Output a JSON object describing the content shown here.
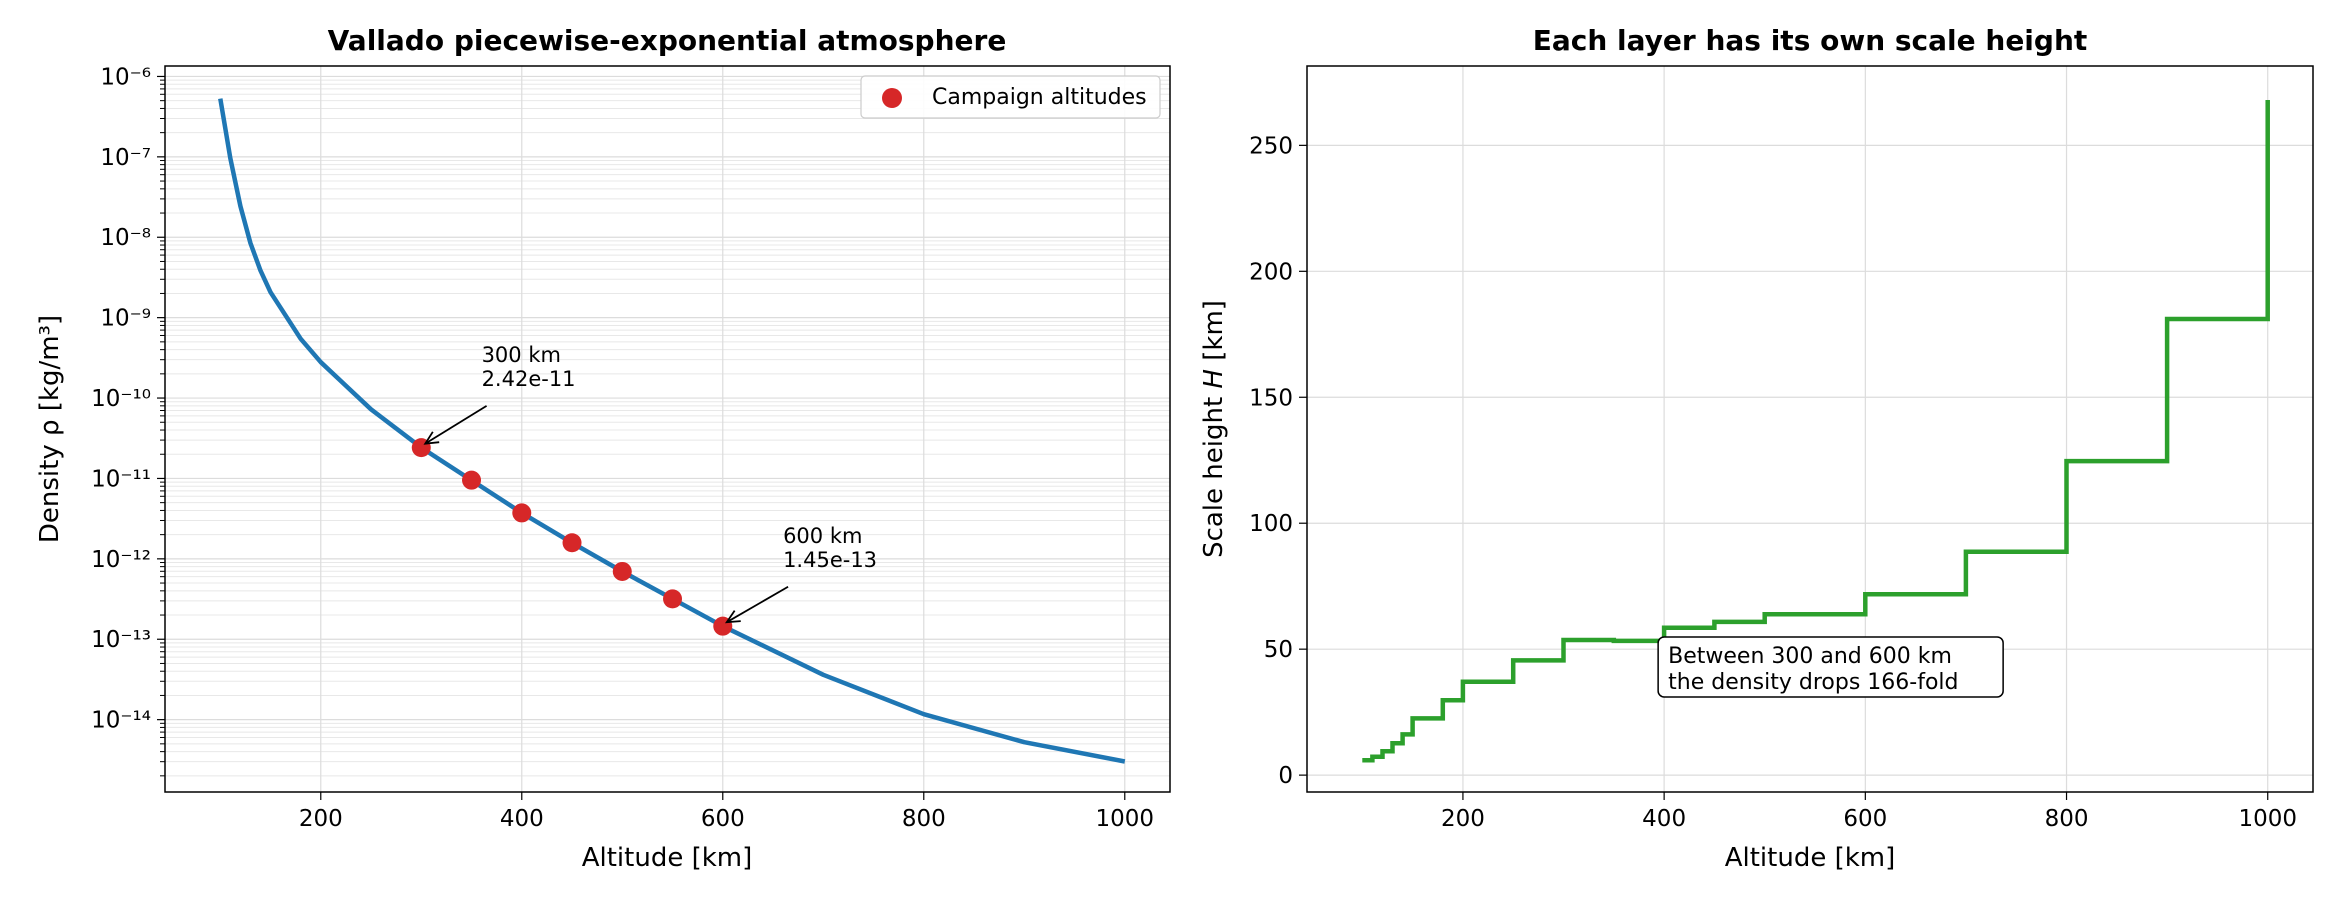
{
  "chart_data": [
    {
      "type": "line",
      "title": "Vallado piecewise-exponential atmosphere",
      "xlabel": "Altitude [km]",
      "ylabel": "Density ρ [kg/m³]",
      "yscale": "log",
      "xlim": [
        45,
        1045
      ],
      "ylim_exp": [
        -14.9,
        -5.87
      ],
      "xticks": [
        200,
        400,
        600,
        800,
        1000
      ],
      "yticks": [
        {
          "exp": -6,
          "label": "10⁻⁶"
        },
        {
          "exp": -7,
          "label": "10⁻⁷"
        },
        {
          "exp": -8,
          "label": "10⁻⁸"
        },
        {
          "exp": -9,
          "label": "10⁻⁹"
        },
        {
          "exp": -10,
          "label": "10⁻¹⁰"
        },
        {
          "exp": -11,
          "label": "10⁻¹¹"
        },
        {
          "exp": -12,
          "label": "10⁻¹²"
        },
        {
          "exp": -13,
          "label": "10⁻¹³"
        },
        {
          "exp": -14,
          "label": "10⁻¹⁴"
        }
      ],
      "grid": true,
      "line_color": "#1f77b4",
      "marker_color": "#d62728",
      "series": [
        {
          "x": [
            100,
            110,
            120,
            130,
            140,
            150,
            180,
            200,
            250,
            300,
            350,
            400,
            450,
            500,
            600,
            700,
            800,
            900,
            1000
          ],
          "y": [
            5.297e-07,
            9.661e-08,
            2.438e-08,
            8.484e-09,
            3.845e-09,
            2.07e-09,
            5.464e-10,
            2.789e-10,
            7.248e-11,
            2.418e-11,
            9.518e-12,
            3.725e-12,
            1.585e-12,
            6.967e-13,
            1.454e-13,
            3.614e-14,
            1.17e-14,
            5.245e-15,
            3.019e-15
          ]
        },
        {
          "name": "Campaign altitudes",
          "x": [
            300,
            350,
            400,
            450,
            500,
            550,
            600
          ],
          "y": [
            2.418e-11,
            9.518e-12,
            3.725e-12,
            1.585e-12,
            6.967e-13,
            3.18e-13,
            1.454e-13
          ]
        }
      ],
      "legend": {
        "position": "top-right",
        "label": "Campaign altitudes"
      },
      "annotations": [
        {
          "x": 300,
          "y": 2.418e-11,
          "text_x": 360,
          "text_y_exp": -9.55,
          "lines": [
            "300 km",
            "2.42e-11"
          ]
        },
        {
          "x": 600,
          "y": 1.454e-13,
          "text_x": 660,
          "text_y_exp": -11.8,
          "lines": [
            "600 km",
            "1.45e-13"
          ]
        }
      ]
    },
    {
      "type": "line",
      "step": "post",
      "title": "Each layer has its own scale height",
      "xlabel": "Altitude [km]",
      "ylabel": "Scale height H [km]",
      "xlim": [
        45,
        1045
      ],
      "ylim": [
        -6.7,
        281.5
      ],
      "xticks": [
        200,
        400,
        600,
        800,
        1000
      ],
      "yticks": [
        0,
        50,
        100,
        150,
        200,
        250
      ],
      "grid": true,
      "line_color": "#2ca02c",
      "series": [
        {
          "x": [
            100,
            110,
            120,
            130,
            140,
            150,
            180,
            200,
            250,
            300,
            350,
            400,
            450,
            500,
            600,
            700,
            800,
            900,
            1000
          ],
          "y": [
            5.877,
            7.263,
            9.473,
            12.636,
            16.149,
            22.523,
            29.74,
            37.105,
            45.546,
            53.628,
            53.298,
            58.515,
            60.828,
            63.822,
            71.835,
            88.667,
            124.64,
            181.05,
            268.0
          ]
        }
      ],
      "callout": {
        "x": 400,
        "y": 35,
        "lines": [
          "Between 300 and 600 km",
          "the density drops 166-fold"
        ]
      }
    }
  ]
}
